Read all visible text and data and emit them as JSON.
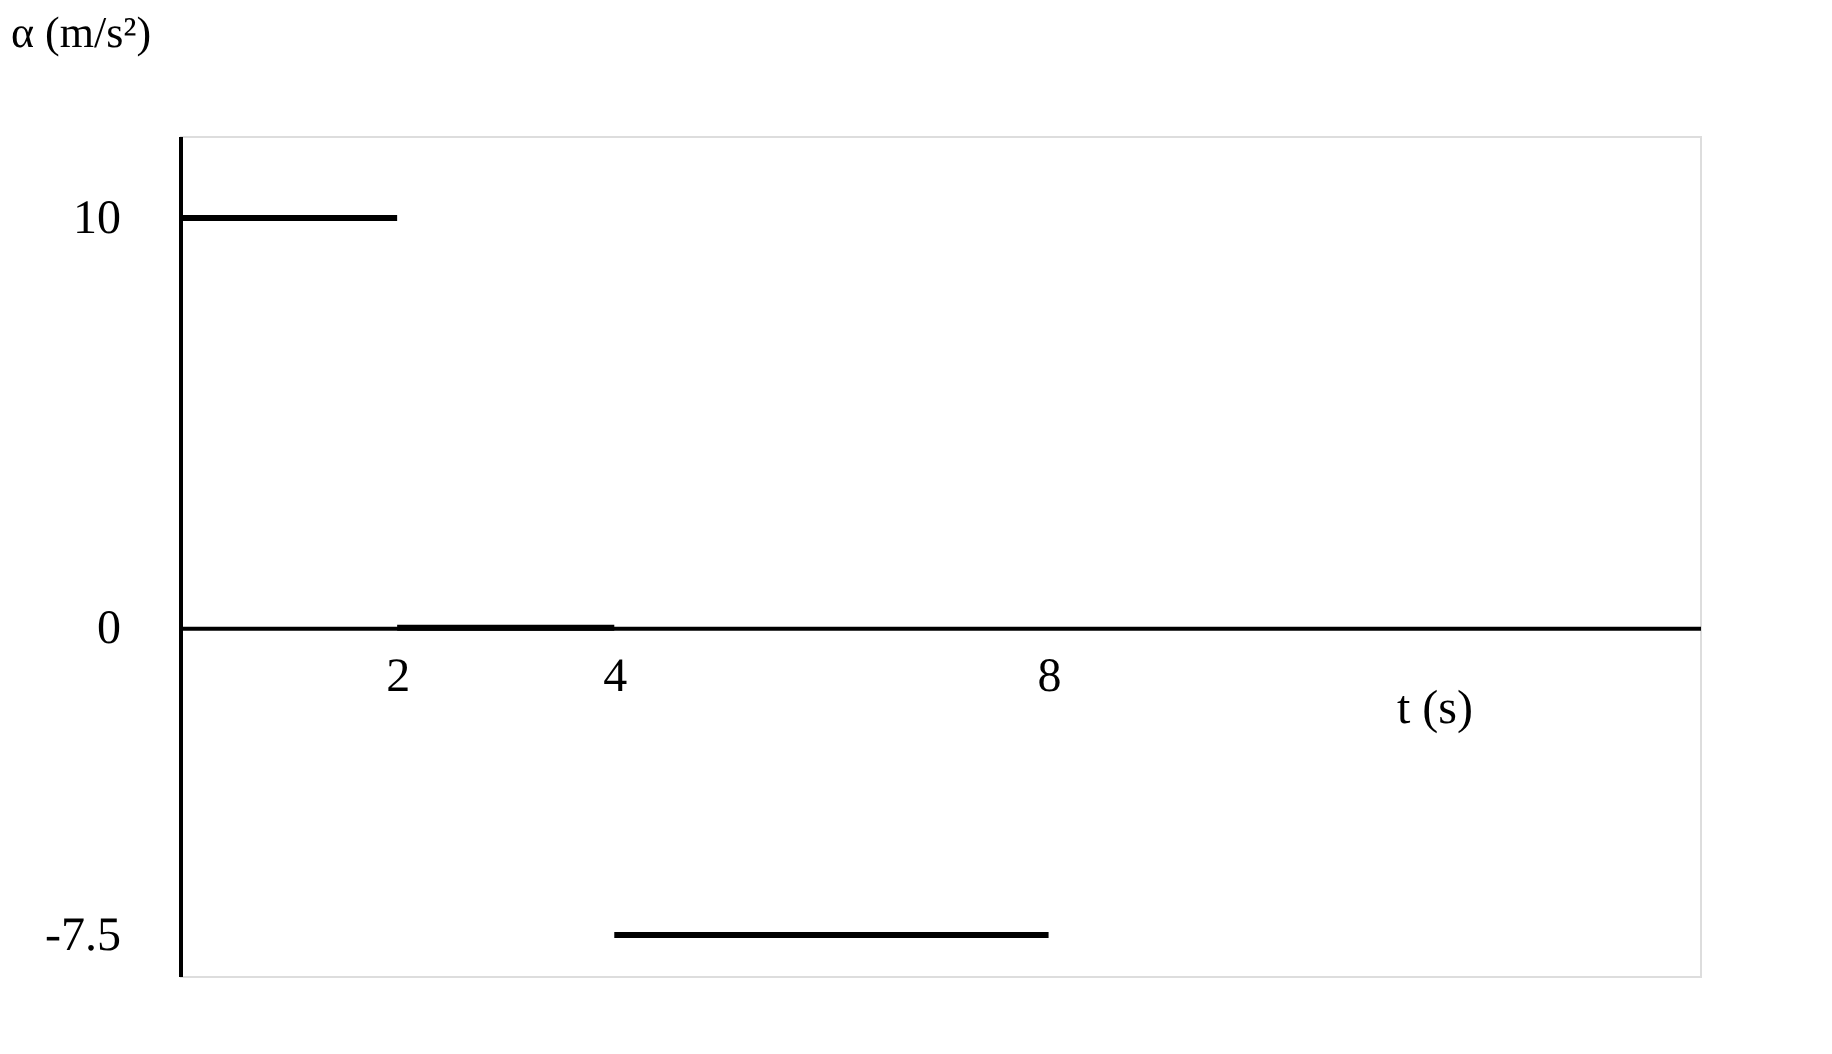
{
  "chart_data": {
    "type": "line",
    "xlabel": "t (s)",
    "ylabel": "α (m/s²)",
    "xlim": [
      0,
      14
    ],
    "ylim": [
      -8.5,
      12
    ],
    "xticks": [
      2,
      4,
      8
    ],
    "yticks": [
      -7.5,
      0,
      10
    ],
    "series": [
      {
        "x": [
          0,
          2
        ],
        "values": [
          10,
          10
        ],
        "color": "#000000"
      },
      {
        "x": [
          2,
          4
        ],
        "values": [
          0,
          0
        ],
        "color": "#000000"
      },
      {
        "x": [
          4,
          8
        ],
        "values": [
          -7.5,
          -7.5
        ],
        "color": "#000000"
      }
    ]
  }
}
